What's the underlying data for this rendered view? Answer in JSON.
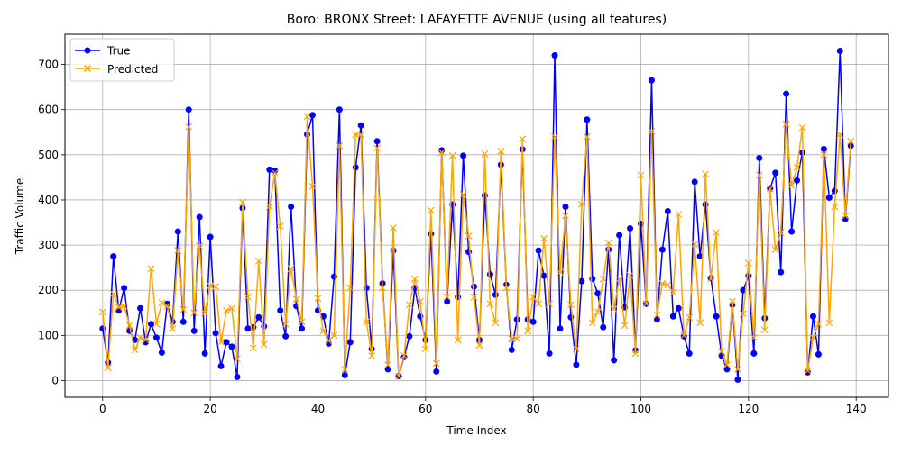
{
  "chart_data": {
    "type": "line",
    "title": "Boro: BRONX Street: LAFAYETTE AVENUE (using all features)",
    "xlabel": "Time Index",
    "ylabel": "Traffic Volume",
    "xlim": [
      -7,
      146
    ],
    "ylim": [
      -37,
      767
    ],
    "xticks": [
      0,
      20,
      40,
      60,
      80,
      100,
      120,
      140
    ],
    "yticks": [
      0,
      100,
      200,
      300,
      400,
      500,
      600,
      700
    ],
    "grid": true,
    "legend_position": "top-left",
    "colors": {
      "true": "#0000ff",
      "predicted": "#ffa500"
    },
    "series": [
      {
        "name": "True",
        "marker": "circle",
        "values": [
          115,
          40,
          275,
          155,
          205,
          110,
          90,
          160,
          85,
          125,
          95,
          62,
          170,
          130,
          330,
          130,
          600,
          110,
          362,
          60,
          318,
          105,
          32,
          85,
          75,
          8,
          382,
          115,
          118,
          140,
          120,
          467,
          465,
          155,
          98,
          385,
          165,
          115,
          545,
          588,
          155,
          142,
          82,
          230,
          600,
          12,
          85,
          472,
          565,
          205,
          70,
          530,
          215,
          25,
          288,
          10,
          52,
          98,
          205,
          142,
          90,
          325,
          20,
          510,
          175,
          390,
          185,
          498,
          285,
          208,
          90,
          410,
          235,
          190,
          478,
          212,
          68,
          135,
          512,
          135,
          130,
          288,
          232,
          60,
          720,
          115,
          385,
          140,
          35,
          220,
          578,
          225,
          193,
          118,
          290,
          45,
          322,
          162,
          337,
          67,
          347,
          170,
          665,
          135,
          290,
          375,
          142,
          160,
          98,
          60,
          440,
          275,
          390,
          227,
          142,
          55,
          25,
          168,
          2,
          200,
          232,
          60,
          493,
          138,
          425,
          460,
          240,
          635,
          330,
          443,
          505,
          18,
          142,
          58,
          513,
          405,
          420,
          730,
          358,
          520
        ]
      },
      {
        "name": "Predicted",
        "marker": "x",
        "values": [
          152,
          28,
          192,
          162,
          165,
          122,
          68,
          95,
          90,
          248,
          125,
          172,
          165,
          115,
          288,
          157,
          562,
          150,
          298,
          150,
          210,
          208,
          85,
          155,
          160,
          48,
          395,
          185,
          72,
          265,
          80,
          385,
          460,
          342,
          125,
          248,
          180,
          130,
          585,
          430,
          182,
          110,
          88,
          100,
          520,
          25,
          205,
          545,
          545,
          130,
          55,
          515,
          205,
          35,
          338,
          10,
          55,
          168,
          225,
          175,
          70,
          377,
          38,
          505,
          185,
          498,
          90,
          412,
          320,
          185,
          78,
          502,
          170,
          128,
          508,
          205,
          92,
          92,
          535,
          110,
          185,
          170,
          315,
          170,
          540,
          240,
          365,
          168,
          70,
          390,
          540,
          128,
          152,
          225,
          305,
          158,
          225,
          122,
          233,
          60,
          455,
          170,
          552,
          145,
          215,
          212,
          195,
          368,
          100,
          140,
          302,
          128,
          457,
          225,
          328,
          65,
          35,
          175,
          25,
          148,
          260,
          95,
          455,
          112,
          425,
          290,
          328,
          568,
          432,
          472,
          560,
          22,
          95,
          125,
          500,
          128,
          385,
          545,
          365,
          530
        ]
      }
    ]
  }
}
